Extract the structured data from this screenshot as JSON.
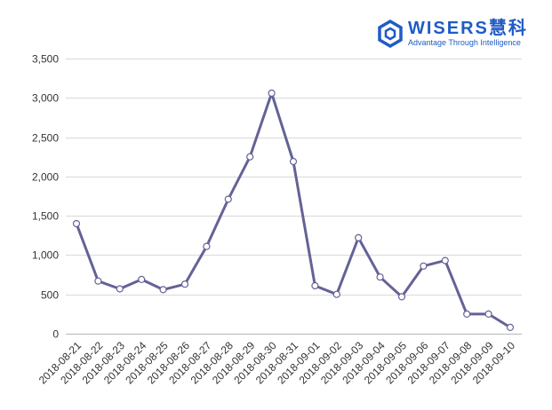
{
  "logo": {
    "brand": "WISERS慧科",
    "tagline": "Advantage Through Intelligence",
    "color": "#1f5bc6",
    "icon": "hexagon-logo-icon"
  },
  "chart_data": {
    "type": "line",
    "title": "",
    "xlabel": "",
    "ylabel": "",
    "categories": [
      "2018-08-21",
      "2018-08-22",
      "2018-08-23",
      "2018-08-24",
      "2018-08-25",
      "2018-08-26",
      "2018-08-27",
      "2018-08-28",
      "2018-08-29",
      "2018-08-30",
      "2018-08-31",
      "2018-09-01",
      "2018-09-02",
      "2018-09-03",
      "2018-09-04",
      "2018-09-05",
      "2018-09-06",
      "2018-09-07",
      "2018-09-08",
      "2018-09-09",
      "2018-09-10"
    ],
    "series": [
      {
        "color": "#646296",
        "values": [
          1400,
          670,
          570,
          690,
          560,
          630,
          1110,
          1710,
          2250,
          3060,
          2190,
          610,
          500,
          1220,
          720,
          470,
          860,
          930,
          250,
          250,
          80
        ]
      }
    ],
    "ylim": [
      0,
      3500
    ],
    "yticks": [
      0,
      500,
      1000,
      1500,
      2000,
      2500,
      3000,
      3500
    ],
    "ytick_labels": [
      "0",
      "500",
      "1,000",
      "1,500",
      "2,000",
      "2,500",
      "3,000",
      "3,500"
    ],
    "grid": true
  }
}
